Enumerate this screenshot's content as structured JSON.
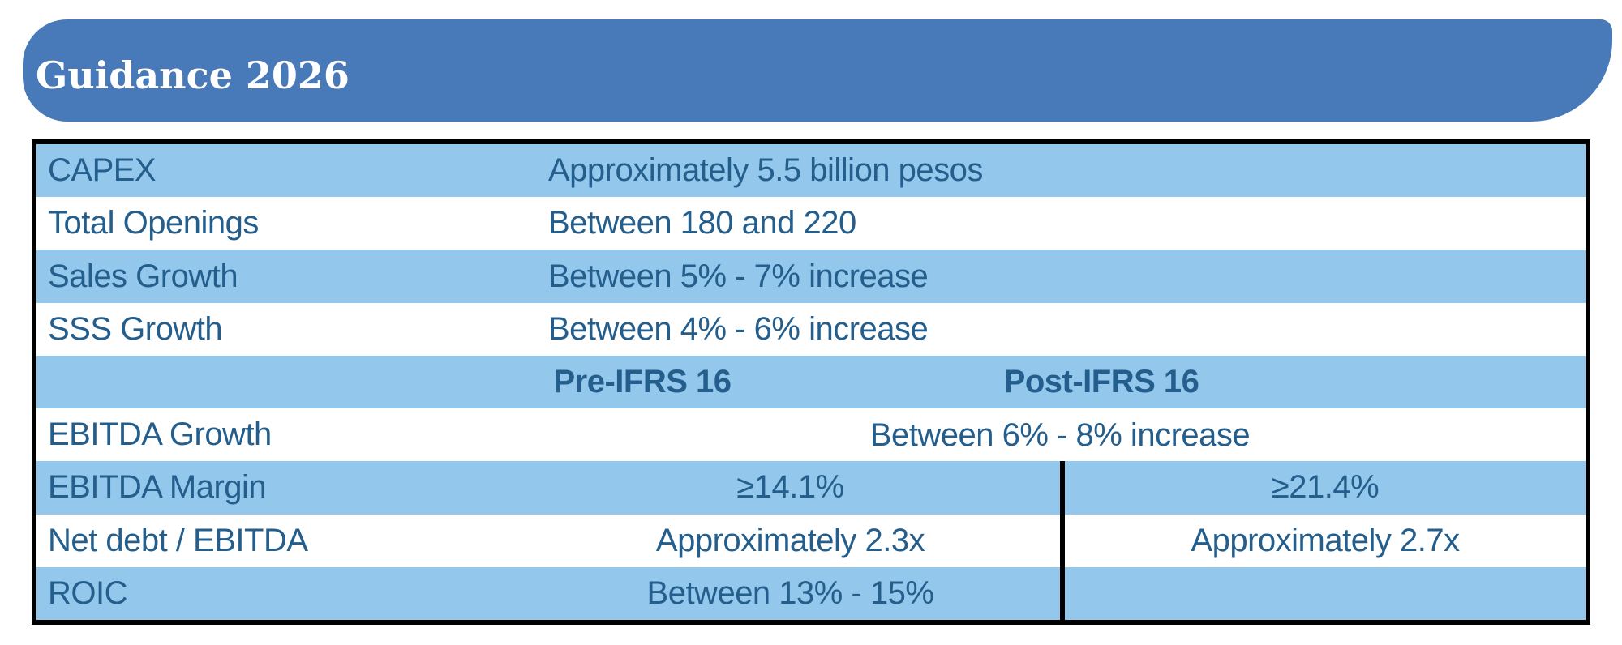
{
  "banner": {
    "title": "Guidance 2026",
    "bg_color": "#4879B8",
    "text_color": "#FFFFFF"
  },
  "table": {
    "colors": {
      "stripe_blue": "#93C7EB",
      "row_white": "#FFFFFF",
      "text_blue": "#245E8C",
      "border_black": "#000000"
    },
    "simple_rows": [
      {
        "label": "CAPEX",
        "value": "Approximately 5.5 billion pesos"
      },
      {
        "label": "Total Openings",
        "value": "Between 180 and 220"
      },
      {
        "label": "Sales Growth",
        "value": "Between 5% - 7% increase"
      },
      {
        "label": "SSS Growth",
        "value": "Between 4% - 6% increase"
      }
    ],
    "section_header": {
      "pre_label": "Pre-IFRS 16",
      "post_label": "Post-IFRS 16"
    },
    "ebitda_growth_row": {
      "label": "EBITDA Growth",
      "value": "Between 6% - 8% increase"
    },
    "split_rows": [
      {
        "label": "EBITDA Margin",
        "pre": "≥14.1%",
        "post": "≥21.4%"
      },
      {
        "label": "Net debt / EBITDA",
        "pre": "Approximately 2.3x",
        "post": "Approximately 2.7x"
      },
      {
        "label": "ROIC",
        "pre": "Between 13% - 15%",
        "post": ""
      }
    ]
  }
}
